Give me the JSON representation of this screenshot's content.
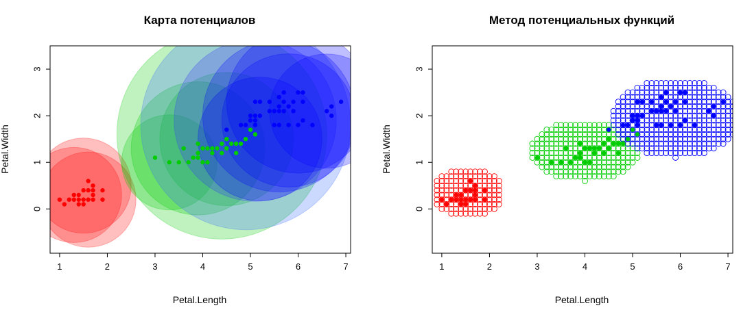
{
  "chart_data": [
    {
      "type": "scatter",
      "title": "Карта потенциалов",
      "xlabel": "Petal.Length",
      "ylabel": "Petal.Width",
      "xlim": [
        0.8,
        7.1
      ],
      "ylim": [
        -0.95,
        3.5
      ],
      "xticks": [
        "1",
        "2",
        "3",
        "4",
        "5",
        "6",
        "7"
      ],
      "yticks": [
        "0",
        "1",
        "2",
        "3"
      ],
      "grid": false,
      "potentials": [
        {
          "x": 1.3,
          "y": 0.3,
          "r": 1.0,
          "color": "#ff0000"
        },
        {
          "x": 1.6,
          "y": 0.2,
          "r": 1.0,
          "color": "#ff0000"
        },
        {
          "x": 1.5,
          "y": 0.5,
          "r": 1.0,
          "color": "#ff0000"
        },
        {
          "x": 3.3,
          "y": 1.0,
          "r": 1.0,
          "color": "#00cc00"
        },
        {
          "x": 3.9,
          "y": 1.3,
          "r": 1.4,
          "color": "#00cc00"
        },
        {
          "x": 4.5,
          "y": 1.5,
          "r": 1.4,
          "color": "#00cc00"
        },
        {
          "x": 4.4,
          "y": 1.6,
          "r": 2.2,
          "color": "#00cc00"
        },
        {
          "x": 4.9,
          "y": 1.8,
          "r": 2.2,
          "color": "#3366ff"
        },
        {
          "x": 5.1,
          "y": 1.9,
          "r": 1.7,
          "color": "#3333ff"
        },
        {
          "x": 5.6,
          "y": 2.0,
          "r": 1.6,
          "color": "#0000ff"
        },
        {
          "x": 6.0,
          "y": 2.3,
          "r": 1.5,
          "color": "#0000ff"
        },
        {
          "x": 6.6,
          "y": 2.1,
          "r": 1.2,
          "color": "#0000ff"
        },
        {
          "x": 5.2,
          "y": 1.5,
          "r": 1.3,
          "color": "#0000ff"
        },
        {
          "x": 5.8,
          "y": 1.9,
          "r": 1.4,
          "color": "#0000ff"
        }
      ],
      "series": [
        {
          "color": "#ff0000",
          "points": [
            [
              1.0,
              0.2
            ],
            [
              1.1,
              0.1
            ],
            [
              1.2,
              0.2
            ],
            [
              1.3,
              0.2
            ],
            [
              1.3,
              0.3
            ],
            [
              1.4,
              0.1
            ],
            [
              1.4,
              0.2
            ],
            [
              1.4,
              0.3
            ],
            [
              1.5,
              0.1
            ],
            [
              1.5,
              0.2
            ],
            [
              1.5,
              0.4
            ],
            [
              1.6,
              0.2
            ],
            [
              1.6,
              0.4
            ],
            [
              1.6,
              0.6
            ],
            [
              1.7,
              0.2
            ],
            [
              1.7,
              0.3
            ],
            [
              1.7,
              0.4
            ],
            [
              1.7,
              0.5
            ],
            [
              1.9,
              0.2
            ],
            [
              1.9,
              0.4
            ]
          ]
        },
        {
          "color": "#00cc00",
          "points": [
            [
              3.0,
              1.1
            ],
            [
              3.3,
              1.0
            ],
            [
              3.5,
              1.0
            ],
            [
              3.6,
              1.3
            ],
            [
              3.7,
              1.0
            ],
            [
              3.8,
              1.1
            ],
            [
              3.9,
              1.1
            ],
            [
              3.9,
              1.2
            ],
            [
              3.9,
              1.4
            ],
            [
              4.0,
              1.0
            ],
            [
              4.0,
              1.3
            ],
            [
              4.1,
              1.0
            ],
            [
              4.1,
              1.3
            ],
            [
              4.2,
              1.2
            ],
            [
              4.2,
              1.3
            ],
            [
              4.3,
              1.3
            ],
            [
              4.4,
              1.2
            ],
            [
              4.4,
              1.4
            ],
            [
              4.5,
              1.3
            ],
            [
              4.5,
              1.5
            ],
            [
              4.6,
              1.4
            ],
            [
              4.7,
              1.2
            ],
            [
              4.7,
              1.4
            ],
            [
              4.8,
              1.4
            ],
            [
              4.9,
              1.5
            ],
            [
              5.0,
              1.7
            ],
            [
              5.1,
              1.6
            ]
          ]
        },
        {
          "color": "#0000ff",
          "points": [
            [
              4.5,
              1.7
            ],
            [
              4.8,
              1.8
            ],
            [
              4.9,
              1.8
            ],
            [
              5.0,
              1.9
            ],
            [
              5.0,
              2.0
            ],
            [
              5.1,
              1.8
            ],
            [
              5.1,
              1.9
            ],
            [
              5.1,
              2.0
            ],
            [
              5.1,
              2.3
            ],
            [
              5.2,
              2.0
            ],
            [
              5.2,
              2.3
            ],
            [
              5.4,
              2.1
            ],
            [
              5.4,
              2.3
            ],
            [
              5.5,
              1.8
            ],
            [
              5.5,
              2.1
            ],
            [
              5.6,
              1.8
            ],
            [
              5.6,
              2.1
            ],
            [
              5.6,
              2.2
            ],
            [
              5.6,
              2.4
            ],
            [
              5.7,
              2.1
            ],
            [
              5.7,
              2.3
            ],
            [
              5.7,
              2.5
            ],
            [
              5.8,
              1.8
            ],
            [
              5.8,
              2.2
            ],
            [
              5.9,
              2.1
            ],
            [
              5.9,
              2.3
            ],
            [
              6.0,
              1.8
            ],
            [
              6.0,
              2.5
            ],
            [
              6.1,
              1.9
            ],
            [
              6.1,
              2.3
            ],
            [
              6.1,
              2.5
            ],
            [
              6.3,
              1.8
            ],
            [
              6.6,
              2.1
            ],
            [
              6.7,
              2.0
            ],
            [
              6.7,
              2.2
            ],
            [
              6.9,
              2.3
            ]
          ]
        }
      ]
    },
    {
      "type": "scatter",
      "title": "Метод потенциальных функций",
      "xlabel": "Petal.Length",
      "ylabel": "Petal.Width",
      "xlim": [
        0.8,
        7.1
      ],
      "ylim": [
        -0.95,
        3.5
      ],
      "xticks": [
        "1",
        "2",
        "3",
        "4",
        "5",
        "6",
        "7"
      ],
      "yticks": [
        "0",
        "1",
        "2",
        "3"
      ],
      "grid": false,
      "classification_regions": [
        {
          "color": "#ff0000",
          "x_range": [
            0.9,
            2.3
          ],
          "y_range": [
            -0.2,
            0.9
          ],
          "center": [
            1.55,
            0.35
          ],
          "radius": [
            0.75,
            0.55
          ]
        },
        {
          "color": "#00cc00",
          "x_range": [
            2.9,
            5.1
          ],
          "y_range": [
            0.6,
            1.9
          ],
          "center": [
            4.0,
            1.25
          ],
          "radius": [
            1.15,
            0.65
          ]
        },
        {
          "color": "#0000ff",
          "x_range": [
            4.5,
            7.1
          ],
          "y_range": [
            1.1,
            2.8
          ],
          "center": [
            5.9,
            1.95
          ],
          "radius": [
            1.35,
            0.85
          ]
        }
      ],
      "series_ref": "same points as first chart"
    }
  ]
}
